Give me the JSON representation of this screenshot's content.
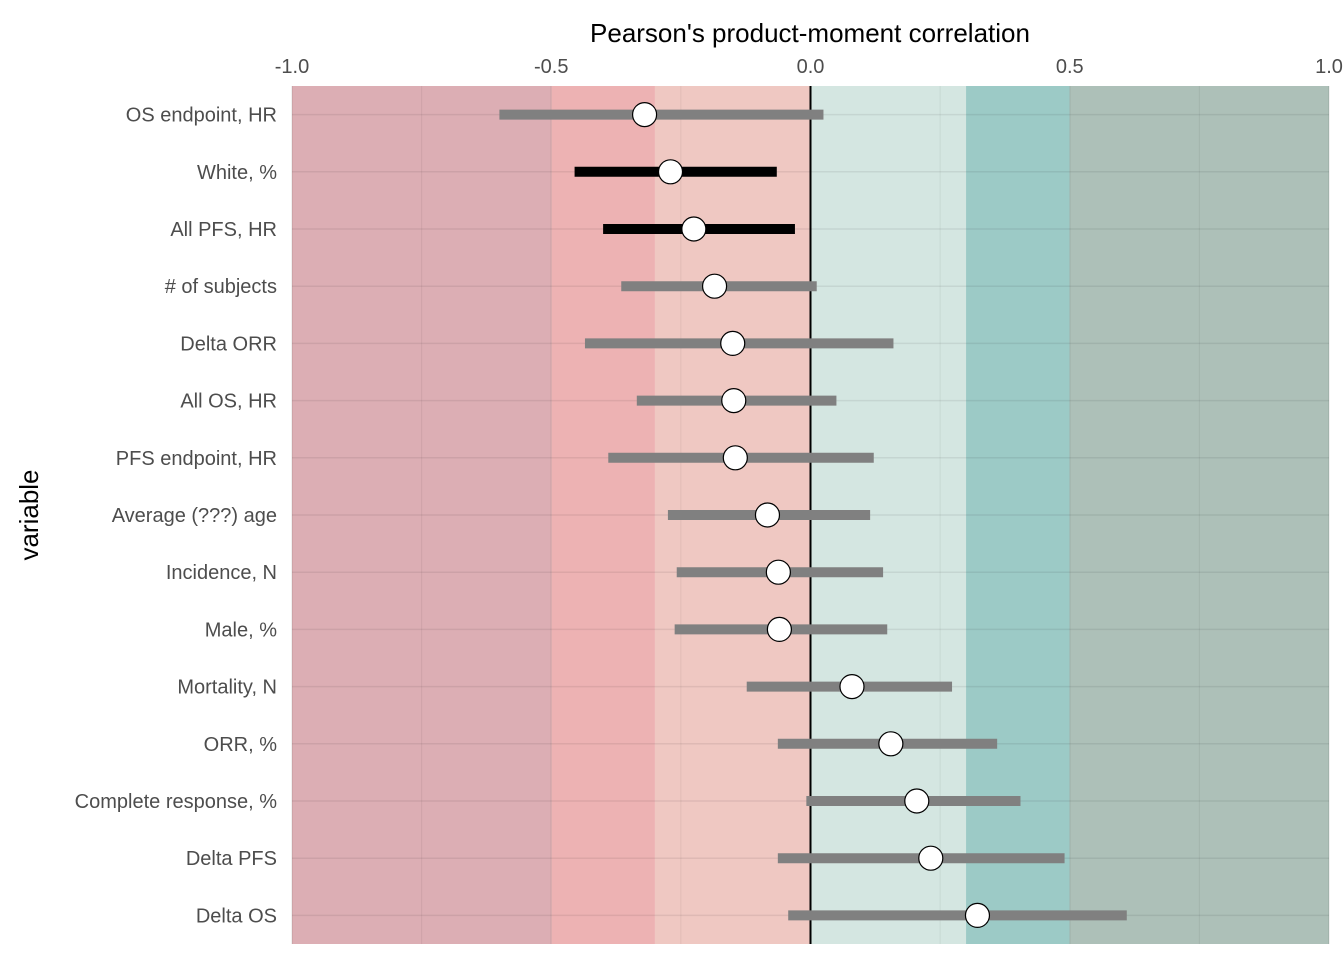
{
  "chart_data": {
    "type": "forest",
    "xlabel": "Pearson's product-moment correlation",
    "ylabel": "variable",
    "xaxis_position": "top",
    "xlim": [
      -1.0,
      1.0
    ],
    "x_ticks": [
      "-1.0",
      "-0.5",
      "0.0",
      "0.5",
      "1.0"
    ],
    "x_tick_values": [
      -1.0,
      -0.5,
      0.0,
      0.5,
      1.0
    ],
    "reference_line": 0.0,
    "grid": true,
    "bands": [
      {
        "from": -1.0,
        "to": -0.5,
        "color": "#dcaeb4"
      },
      {
        "from": -0.5,
        "to": -0.3,
        "color": "#edb2b3"
      },
      {
        "from": -0.3,
        "to": 0.0,
        "color": "#efc8c2"
      },
      {
        "from": 0.0,
        "to": 0.3,
        "color": "#d4e6e1"
      },
      {
        "from": 0.3,
        "to": 0.5,
        "color": "#9ccac6"
      },
      {
        "from": 0.5,
        "to": 1.0,
        "color": "#adc0b8"
      }
    ],
    "colors": {
      "ci_significant": "#000000",
      "ci_nonsignificant": "#808080",
      "point_fill": "#ffffff",
      "point_stroke": "#000000",
      "zero_line": "#000000"
    },
    "rows": [
      {
        "label": "OS endpoint, HR",
        "estimate": -0.32,
        "lower": -0.6,
        "upper": 0.025,
        "significant": false
      },
      {
        "label": "White, %",
        "estimate": -0.27,
        "lower": -0.455,
        "upper": -0.065,
        "significant": true
      },
      {
        "label": "All PFS, HR",
        "estimate": -0.225,
        "lower": -0.4,
        "upper": -0.03,
        "significant": true
      },
      {
        "label": "# of subjects",
        "estimate": -0.185,
        "lower": -0.365,
        "upper": 0.012,
        "significant": false
      },
      {
        "label": "Delta ORR",
        "estimate": -0.15,
        "lower": -0.435,
        "upper": 0.16,
        "significant": false
      },
      {
        "label": "All OS, HR",
        "estimate": -0.148,
        "lower": -0.335,
        "upper": 0.05,
        "significant": false
      },
      {
        "label": "PFS endpoint, HR",
        "estimate": -0.145,
        "lower": -0.39,
        "upper": 0.122,
        "significant": false
      },
      {
        "label": "Average (???) age",
        "estimate": -0.083,
        "lower": -0.275,
        "upper": 0.115,
        "significant": false
      },
      {
        "label": "Incidence, N",
        "estimate": -0.062,
        "lower": -0.258,
        "upper": 0.14,
        "significant": false
      },
      {
        "label": "Male, %",
        "estimate": -0.06,
        "lower": -0.262,
        "upper": 0.148,
        "significant": false
      },
      {
        "label": "Mortality, N",
        "estimate": 0.08,
        "lower": -0.123,
        "upper": 0.273,
        "significant": false
      },
      {
        "label": "ORR, %",
        "estimate": 0.155,
        "lower": -0.063,
        "upper": 0.36,
        "significant": false
      },
      {
        "label": "Complete response, %",
        "estimate": 0.205,
        "lower": -0.008,
        "upper": 0.405,
        "significant": false
      },
      {
        "label": "Delta PFS",
        "estimate": 0.232,
        "lower": -0.063,
        "upper": 0.49,
        "significant": false
      },
      {
        "label": "Delta OS",
        "estimate": 0.322,
        "lower": -0.043,
        "upper": 0.61,
        "significant": false
      }
    ]
  }
}
